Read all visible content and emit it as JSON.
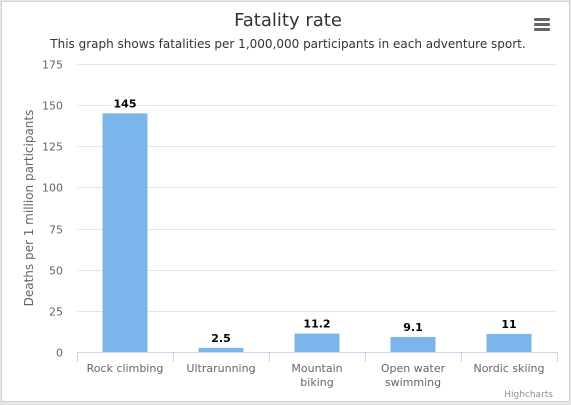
{
  "chart_data": {
    "type": "bar",
    "title": "Fatality rate",
    "subtitle": "This graph shows fatalities per 1,000,000 participants in each adventure sport.",
    "xlabel": "",
    "ylabel": "Deaths per 1 million participants",
    "categories": [
      [
        "Rock climbing"
      ],
      [
        "Ultrarunning"
      ],
      [
        "Mountain",
        "biking"
      ],
      [
        "Open water",
        "swimming"
      ],
      [
        "Nordic skiing"
      ]
    ],
    "values": [
      145,
      2.5,
      11.2,
      9.1,
      11
    ],
    "data_labels": [
      "145",
      "2.5",
      "11.2",
      "9.1",
      "11"
    ],
    "ylim": [
      0,
      175
    ],
    "yticks": [
      0,
      25,
      50,
      75,
      100,
      125,
      150,
      175
    ],
    "grid": true,
    "legend": "none",
    "colors": {
      "bar": "#7cb5ec",
      "grid": "#e6e6e6",
      "axis": "#ccd6eb",
      "title": "#333333",
      "text": "#666666"
    }
  },
  "ui": {
    "menu_icon": "hamburger-menu-icon",
    "credits": "Highcharts"
  }
}
